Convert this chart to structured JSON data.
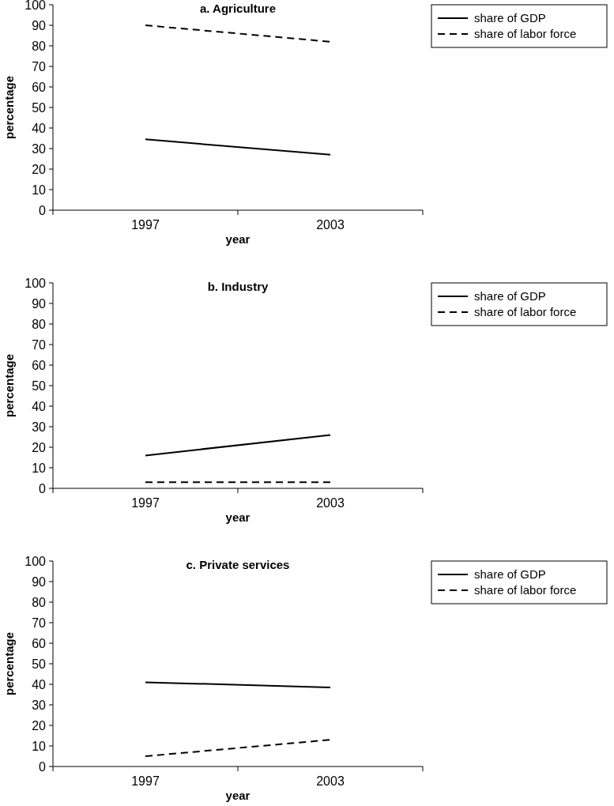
{
  "chart_data": [
    {
      "type": "line",
      "title": "a. Agriculture",
      "xlabel": "year",
      "ylabel": "percentage",
      "categories": [
        "1997",
        "2003"
      ],
      "ylim": [
        0,
        100
      ],
      "yticks": [
        0,
        10,
        20,
        30,
        40,
        50,
        60,
        70,
        80,
        90,
        100
      ],
      "legend": "right",
      "grid": false,
      "series": [
        {
          "name": "share of GDP",
          "color": "#000000",
          "line_style": "solid",
          "values": [
            34.5,
            27
          ]
        },
        {
          "name": "share of labor force",
          "color": "#000000",
          "line_style": "dashed",
          "values": [
            90,
            82
          ]
        }
      ]
    },
    {
      "type": "line",
      "title": "b. Industry",
      "xlabel": "year",
      "ylabel": "percentage",
      "categories": [
        "1997",
        "2003"
      ],
      "ylim": [
        0,
        100
      ],
      "yticks": [
        0,
        10,
        20,
        30,
        40,
        50,
        60,
        70,
        80,
        90,
        100
      ],
      "legend": "right",
      "grid": false,
      "series": [
        {
          "name": "share of GDP",
          "color": "#000000",
          "line_style": "solid",
          "values": [
            16,
            26
          ]
        },
        {
          "name": "share of labor force",
          "color": "#000000",
          "line_style": "dashed",
          "values": [
            3,
            3
          ]
        }
      ]
    },
    {
      "type": "line",
      "title": "c. Private services",
      "xlabel": "year",
      "ylabel": "percentage",
      "categories": [
        "1997",
        "2003"
      ],
      "ylim": [
        0,
        100
      ],
      "yticks": [
        0,
        10,
        20,
        30,
        40,
        50,
        60,
        70,
        80,
        90,
        100
      ],
      "legend": "right",
      "grid": false,
      "series": [
        {
          "name": "share of GDP",
          "color": "#000000",
          "line_style": "solid",
          "values": [
            41,
            38.5
          ]
        },
        {
          "name": "share of labor force",
          "color": "#000000",
          "line_style": "dashed",
          "values": [
            5,
            13
          ]
        }
      ]
    }
  ]
}
